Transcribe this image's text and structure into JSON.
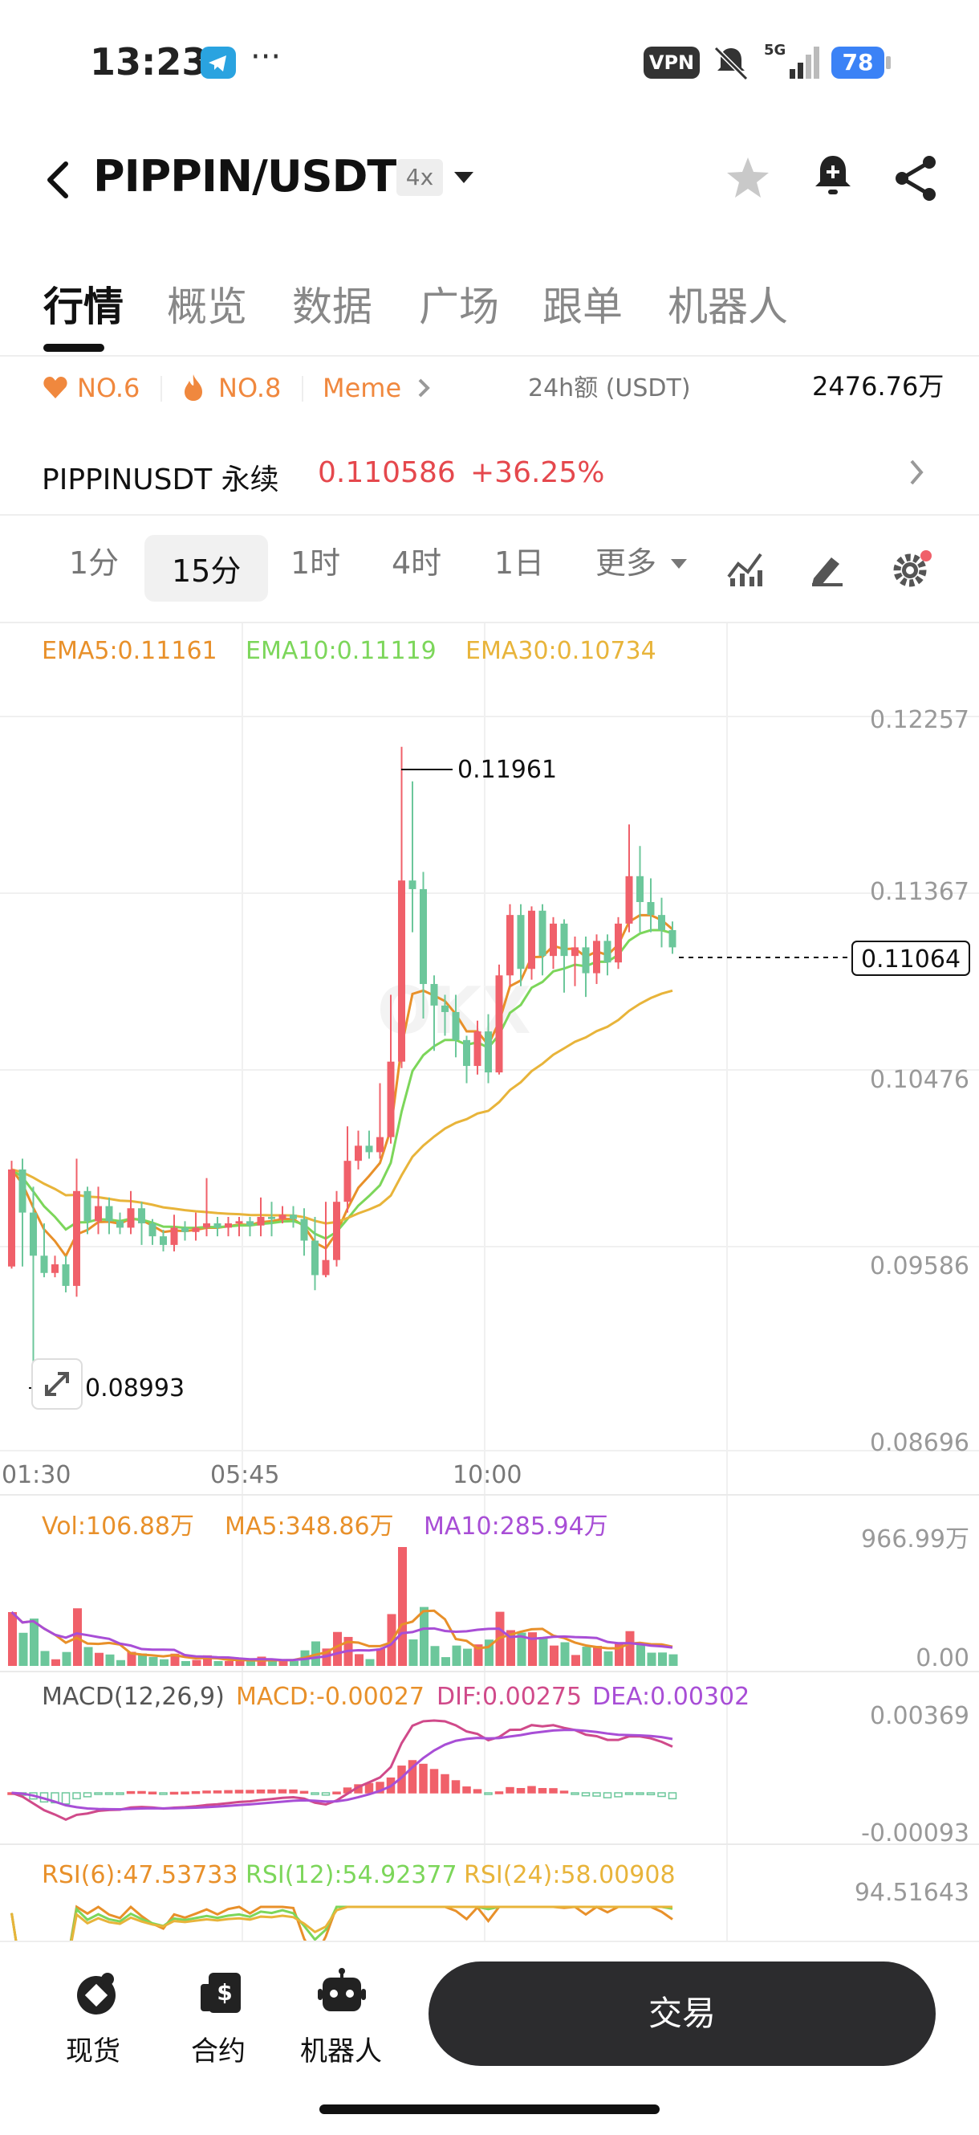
{
  "status_bar": {
    "time": "13:23",
    "telegram_icon": "telegram-icon",
    "more": "···",
    "vpn": "VPN",
    "network": "5G",
    "battery": "78"
  },
  "header": {
    "pair": "PIPPIN/USDT",
    "leverage": "4x",
    "icons": [
      "back-icon",
      "caret-down-icon",
      "star-icon",
      "bell-plus-icon",
      "share-icon"
    ]
  },
  "tabs": [
    {
      "label": "行情"
    },
    {
      "label": "概览"
    },
    {
      "label": "数据"
    },
    {
      "label": "广场"
    },
    {
      "label": "跟单"
    },
    {
      "label": "机器人"
    }
  ],
  "badges": {
    "rank1": "NO.6",
    "rank2": "NO.8",
    "tag": "Meme",
    "volume_label": "24h额 (USDT)",
    "volume_value": "2476.76万"
  },
  "perp": {
    "name": "PIPPINUSDT 永续",
    "price": "0.110586",
    "change": "+36.25%"
  },
  "intervals": {
    "items": [
      "1分",
      "15分",
      "1时",
      "4时",
      "1日",
      "更多"
    ],
    "active": "15分"
  },
  "chart_data": {
    "type": "candlestick",
    "title": "",
    "ema_legend": {
      "ema5": "EMA5:0.11161",
      "ema10": "EMA10:0.11119",
      "ema30": "EMA30:0.10734"
    },
    "price_axis": [
      "0.12257",
      "0.11367",
      "0.10476",
      "0.09586",
      "0.08696"
    ],
    "ylim": [
      0.08696,
      0.12257
    ],
    "time_labels": [
      "01:30",
      "05:45",
      "10:00"
    ],
    "high_marker": "0.11961",
    "low_marker": "0.08993",
    "last_price": "0.11064",
    "candles": [
      [
        0.0955,
        0.1,
        0.0954,
        0.1004
      ],
      [
        0.1,
        0.098,
        0.0955,
        0.1005
      ],
      [
        0.098,
        0.096,
        0.0899,
        0.0992
      ],
      [
        0.096,
        0.0952,
        0.095,
        0.0975
      ],
      [
        0.0952,
        0.0956,
        0.095,
        0.096
      ],
      [
        0.0956,
        0.0946,
        0.0943,
        0.096
      ],
      [
        0.0946,
        0.099,
        0.0941,
        0.1005
      ],
      [
        0.099,
        0.0976,
        0.097,
        0.0992
      ],
      [
        0.0976,
        0.0983,
        0.097,
        0.0992
      ],
      [
        0.0983,
        0.0976,
        0.097,
        0.0987
      ],
      [
        0.0976,
        0.0973,
        0.097,
        0.098
      ],
      [
        0.0973,
        0.0982,
        0.097,
        0.099
      ],
      [
        0.0982,
        0.0975,
        0.0965,
        0.0985
      ],
      [
        0.0975,
        0.0969,
        0.0965,
        0.0977
      ],
      [
        0.0969,
        0.0965,
        0.0962,
        0.0972
      ],
      [
        0.0965,
        0.0973,
        0.0962,
        0.0979
      ],
      [
        0.0973,
        0.0971,
        0.0967,
        0.0976
      ],
      [
        0.0971,
        0.0973,
        0.0967,
        0.098
      ],
      [
        0.0973,
        0.0975,
        0.0969,
        0.0996
      ],
      [
        0.0975,
        0.0973,
        0.0969,
        0.0978
      ],
      [
        0.0973,
        0.0975,
        0.0969,
        0.0978
      ],
      [
        0.0975,
        0.0976,
        0.0969,
        0.0978
      ],
      [
        0.0976,
        0.0974,
        0.0969,
        0.0978
      ],
      [
        0.0974,
        0.0978,
        0.0969,
        0.0987
      ],
      [
        0.0978,
        0.0977,
        0.0969,
        0.0985
      ],
      [
        0.0977,
        0.0979,
        0.0975,
        0.0983
      ],
      [
        0.0979,
        0.0977,
        0.0973,
        0.0983
      ],
      [
        0.0977,
        0.0967,
        0.096,
        0.0982
      ],
      [
        0.0967,
        0.0951,
        0.0944,
        0.0978
      ],
      [
        0.0951,
        0.0958,
        0.095,
        0.0985
      ],
      [
        0.0958,
        0.0985,
        0.0955,
        0.099
      ],
      [
        0.0985,
        0.1004,
        0.098,
        0.102
      ],
      [
        0.1004,
        0.1011,
        0.1,
        0.1018
      ],
      [
        0.1011,
        0.1008,
        0.1005,
        0.1018
      ],
      [
        0.1008,
        0.1015,
        0.1005,
        0.104
      ],
      [
        0.1015,
        0.105,
        0.1012,
        0.1081
      ],
      [
        0.105,
        0.1134,
        0.1047,
        0.1196
      ],
      [
        0.1134,
        0.113,
        0.111,
        0.118
      ],
      [
        0.113,
        0.1086,
        0.107,
        0.1138
      ],
      [
        0.1086,
        0.1076,
        0.1055,
        0.109
      ],
      [
        0.1076,
        0.1073,
        0.1062,
        0.1081
      ],
      [
        0.1073,
        0.106,
        0.1052,
        0.1081
      ],
      [
        0.106,
        0.1048,
        0.104,
        0.1062
      ],
      [
        0.1048,
        0.1064,
        0.1044,
        0.1069
      ],
      [
        0.1064,
        0.1045,
        0.104,
        0.1072
      ],
      [
        0.1045,
        0.109,
        0.1044,
        0.1095
      ],
      [
        0.109,
        0.1118,
        0.1085,
        0.1123
      ],
      [
        0.1118,
        0.1093,
        0.1085,
        0.1123
      ],
      [
        0.1093,
        0.112,
        0.1088,
        0.1122
      ],
      [
        0.112,
        0.1099,
        0.109,
        0.1123
      ],
      [
        0.1099,
        0.1114,
        0.1093,
        0.1117
      ],
      [
        0.1114,
        0.1099,
        0.1082,
        0.1116
      ],
      [
        0.1099,
        0.1103,
        0.1085,
        0.1108
      ],
      [
        0.1103,
        0.1091,
        0.108,
        0.1108
      ],
      [
        0.1091,
        0.1106,
        0.1086,
        0.1109
      ],
      [
        0.1106,
        0.1096,
        0.109,
        0.1109
      ],
      [
        0.1096,
        0.1114,
        0.1093,
        0.1117
      ],
      [
        0.1114,
        0.1136,
        0.111,
        0.116
      ],
      [
        0.1136,
        0.1124,
        0.111,
        0.115
      ],
      [
        0.1124,
        0.1118,
        0.111,
        0.1135
      ],
      [
        0.1118,
        0.1111,
        0.1103,
        0.1126
      ],
      [
        0.1111,
        0.1103,
        0.11,
        0.1115
      ]
    ],
    "volume": {
      "legend": {
        "vol": "Vol:106.88万",
        "ma5": "MA5:348.86万",
        "ma10": "MA10:285.94万"
      },
      "axis_top": "966.99万",
      "axis_bottom": "0.00"
    },
    "macd": {
      "legend": {
        "title": "MACD(12,26,9)",
        "macd": "MACD:-0.00027",
        "dif": "DIF:0.00275",
        "dea": "DEA:0.00302"
      },
      "axis_top": "0.00369",
      "axis_bottom": "-0.00093"
    },
    "rsi": {
      "legend": {
        "r6": "RSI(6):47.53733",
        "r12": "RSI(12):54.92377",
        "r24": "RSI(24):58.00908"
      },
      "axis_top": "94.51643"
    },
    "colors": {
      "up": "#f0606a",
      "down": "#6cc79b",
      "ema5": "#e8902a",
      "ema10": "#7cd65a",
      "ema30": "#e8b43a",
      "ma10": "#a84ed6",
      "dif": "#d04a8a"
    }
  },
  "bottom_nav": [
    {
      "label": "现货",
      "icon": "spot-icon"
    },
    {
      "label": "合约",
      "icon": "contract-icon"
    },
    {
      "label": "机器人",
      "icon": "robot-icon"
    }
  ],
  "trade_button": "交易"
}
